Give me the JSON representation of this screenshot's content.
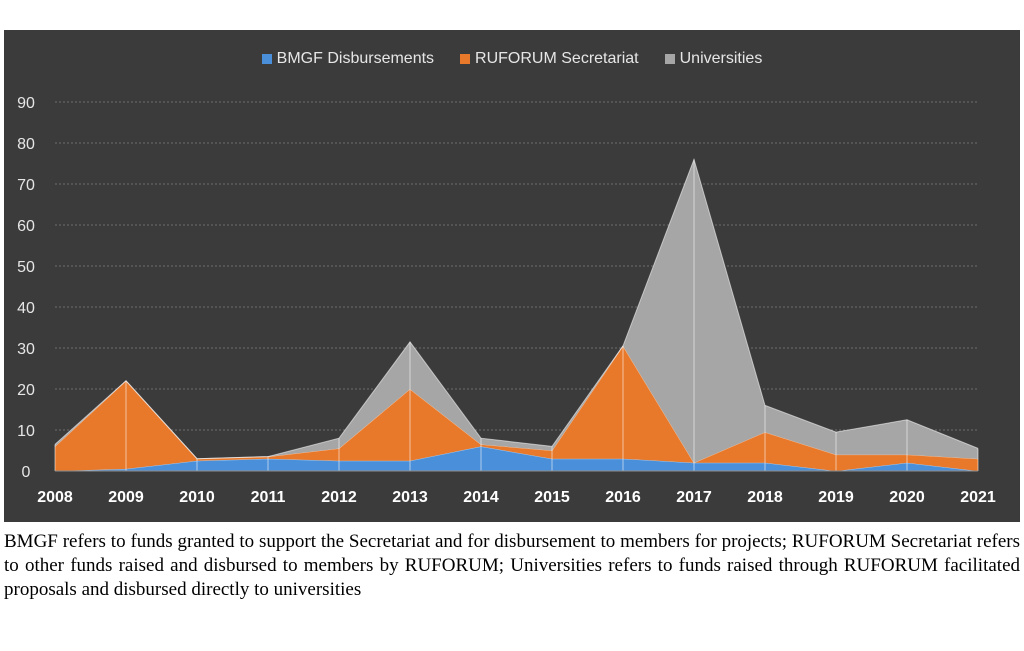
{
  "chart_data": {
    "type": "area",
    "stacked": true,
    "x": [
      "2008",
      "2009",
      "2010",
      "2011",
      "2012",
      "2013",
      "2014",
      "2015",
      "2016",
      "2017",
      "2018",
      "2019",
      "2020",
      "2021"
    ],
    "series": [
      {
        "name": "BMGF Disbursements",
        "color": "#4a8fd9",
        "values": [
          0,
          0.5,
          2.5,
          3,
          2.5,
          2.5,
          6,
          3,
          3,
          2,
          2,
          0,
          2,
          0
        ]
      },
      {
        "name": "RUFORUM Secretariat",
        "color": "#e8782a",
        "values": [
          6,
          21.5,
          0.5,
          0.5,
          3,
          17.5,
          0.5,
          2,
          27.5,
          0,
          7.5,
          4,
          2,
          3
        ]
      },
      {
        "name": "Universities",
        "color": "#a6a6a6",
        "values": [
          0.5,
          0,
          0,
          0,
          2.5,
          11.5,
          1.5,
          1,
          0,
          74,
          6.5,
          5.5,
          8.5,
          2.5
        ]
      }
    ],
    "ylim": [
      0,
      90
    ],
    "yticks": [
      "0",
      "10",
      "20",
      "30",
      "40",
      "50",
      "60",
      "70",
      "80",
      "90"
    ],
    "grid": true,
    "legend_position": "top-center",
    "title": "",
    "xlabel": "",
    "ylabel": ""
  },
  "caption": "BMGF refers to funds granted to support the Secretariat and for disbursement to members for projects; RUFORUM Secretariat refers to other funds raised and disbursed to members by RUFORUM; Universities refers to funds raised through RUFORUM facilitated proposals and disbursed directly to universities"
}
